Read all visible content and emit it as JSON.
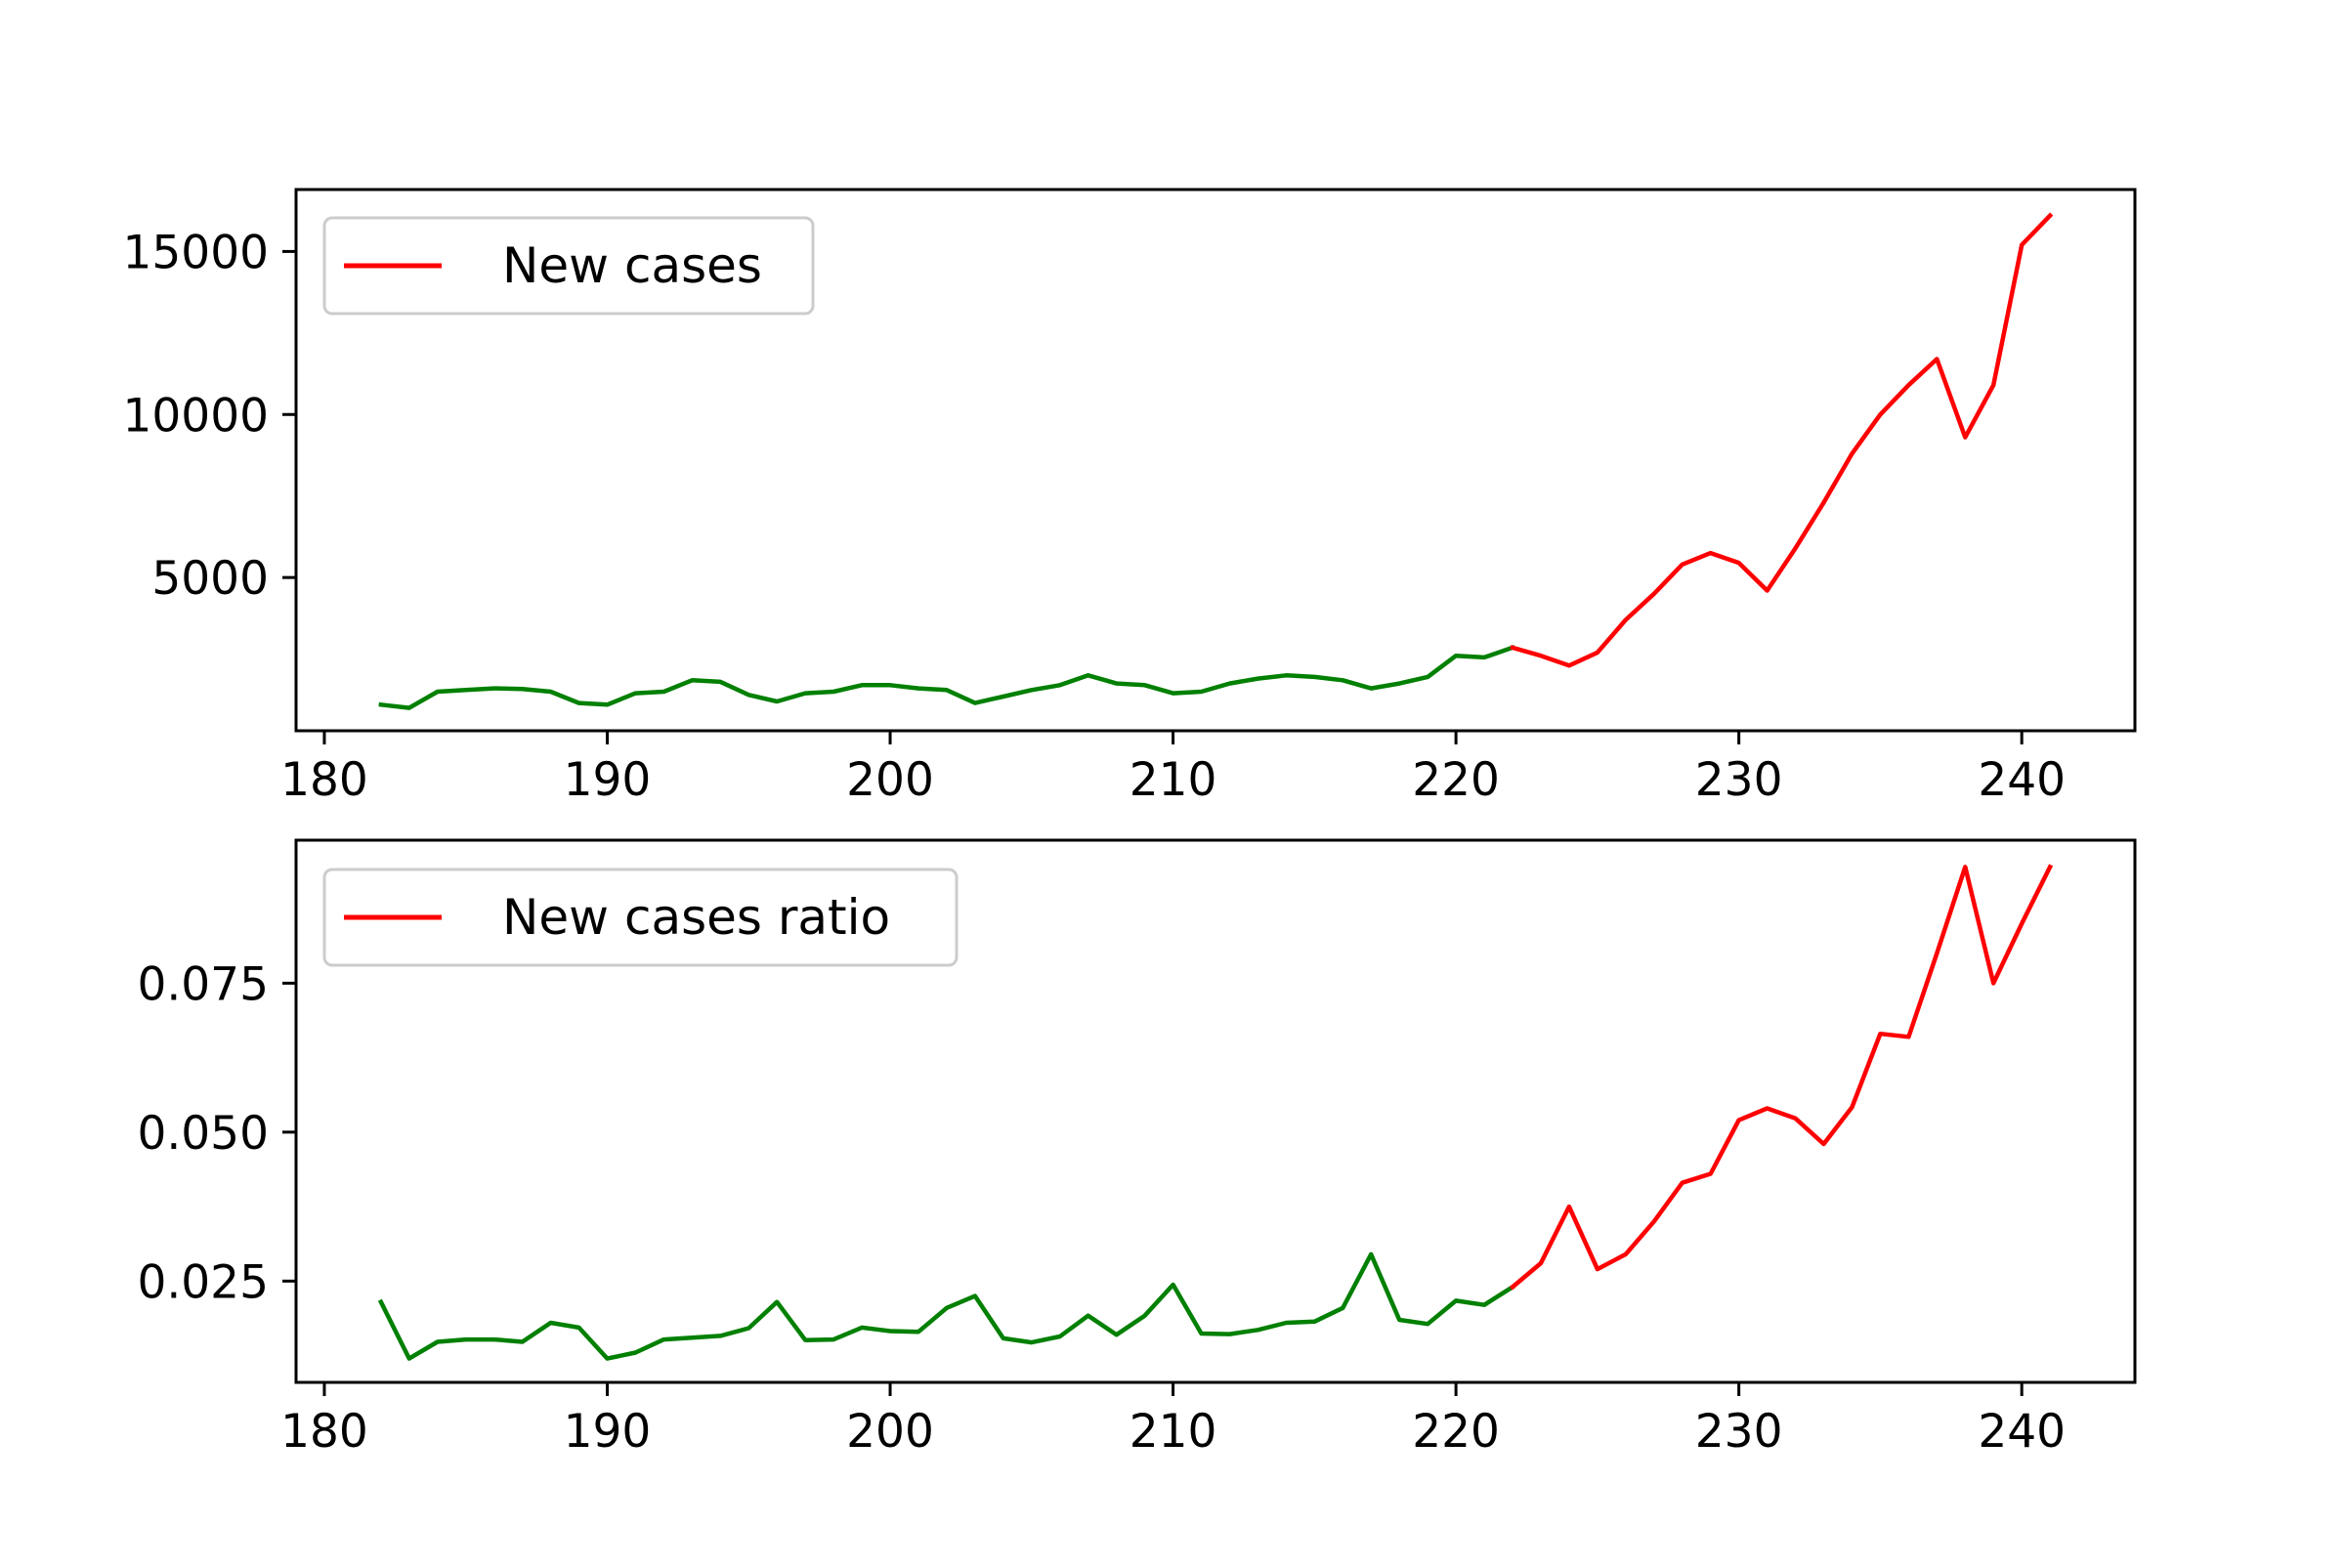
{
  "chart_data": [
    {
      "type": "line",
      "title": "",
      "xlabel": "",
      "ylabel": "",
      "xlim": [
        179,
        244
      ],
      "ylim": [
        300,
        16900
      ],
      "xticks": [
        180,
        190,
        200,
        210,
        220,
        230,
        240
      ],
      "yticks": [
        5000,
        10000,
        15000
      ],
      "xtick_labels": [
        "180",
        "190",
        "200",
        "210",
        "220",
        "230",
        "240"
      ],
      "ytick_labels": [
        "5000",
        "10000",
        "15000"
      ],
      "grid": false,
      "legend": {
        "position": "upper left",
        "entries": [
          {
            "label": "New cases",
            "color": "#ff0000"
          }
        ]
      },
      "series": [
        {
          "color": "#008000",
          "x": [
            182,
            183,
            184,
            185,
            186,
            187,
            188,
            189,
            190,
            191,
            192,
            193,
            194,
            195,
            196,
            197,
            198,
            199,
            200,
            201,
            202,
            203,
            204,
            205,
            206,
            207,
            208,
            209,
            210,
            211,
            212,
            213,
            214,
            215,
            216,
            217,
            218,
            219,
            220,
            221,
            222
          ],
          "y": [
            1100,
            1000,
            1500,
            1550,
            1600,
            1580,
            1500,
            1150,
            1100,
            1450,
            1500,
            1850,
            1800,
            1400,
            1200,
            1450,
            1500,
            1700,
            1700,
            1600,
            1550,
            1150,
            1350,
            1550,
            1700,
            2000,
            1750,
            1700,
            1450,
            1500,
            1750,
            1900,
            2000,
            1950,
            1850,
            1600,
            1750,
            1950,
            2600,
            2550,
            2850
          ]
        },
        {
          "name": "New cases",
          "color": "#ff0000",
          "x": [
            222,
            223,
            224,
            225,
            226,
            227,
            228,
            229,
            230,
            231,
            232,
            233,
            234,
            235,
            236,
            237,
            238,
            239,
            240,
            241
          ],
          "y": [
            2850,
            2600,
            2300,
            2700,
            3700,
            4500,
            5400,
            5750,
            5450,
            4600,
            5900,
            7300,
            8800,
            10000,
            10900,
            11700,
            9300,
            10900,
            15200,
            16100
          ]
        }
      ]
    },
    {
      "type": "line",
      "title": "",
      "xlabel": "",
      "ylabel": "",
      "xlim": [
        179,
        244
      ],
      "ylim": [
        0.008,
        0.099
      ],
      "xticks": [
        180,
        190,
        200,
        210,
        220,
        230,
        240
      ],
      "yticks": [
        0.025,
        0.05,
        0.075
      ],
      "xtick_labels": [
        "180",
        "190",
        "200",
        "210",
        "220",
        "230",
        "240"
      ],
      "ytick_labels": [
        "0.025",
        "0.050",
        "0.075"
      ],
      "grid": false,
      "legend": {
        "position": "upper left",
        "entries": [
          {
            "label": "New cases ratio",
            "color": "#ff0000"
          }
        ]
      },
      "series": [
        {
          "color": "#008000",
          "x": [
            182,
            183,
            184,
            185,
            186,
            187,
            188,
            189,
            190,
            191,
            192,
            193,
            194,
            195,
            196,
            197,
            198,
            199,
            200,
            201,
            202,
            203,
            204,
            205,
            206,
            207,
            208,
            209,
            210,
            211,
            212,
            213,
            214,
            215,
            216,
            217,
            218,
            219,
            220,
            221,
            222
          ],
          "y": [
            0.0215,
            0.012,
            0.0148,
            0.0152,
            0.0152,
            0.0148,
            0.018,
            0.0172,
            0.012,
            0.013,
            0.0152,
            0.0155,
            0.0158,
            0.0171,
            0.0215,
            0.0151,
            0.0152,
            0.0172,
            0.0166,
            0.0165,
            0.0205,
            0.0225,
            0.0154,
            0.0147,
            0.0157,
            0.0192,
            0.016,
            0.0192,
            0.0244,
            0.0162,
            0.0161,
            0.0168,
            0.018,
            0.0182,
            0.0205,
            0.0295,
            0.0185,
            0.0178,
            0.0217,
            0.021,
            0.024
          ]
        },
        {
          "name": "New cases ratio",
          "color": "#ff0000",
          "x": [
            222,
            223,
            224,
            225,
            226,
            227,
            228,
            229,
            230,
            231,
            232,
            233,
            234,
            235,
            236,
            237,
            238,
            239,
            240,
            241
          ],
          "y": [
            0.024,
            0.028,
            0.0375,
            0.027,
            0.0295,
            0.035,
            0.0415,
            0.043,
            0.052,
            0.054,
            0.0523,
            0.048,
            0.0542,
            0.0665,
            0.066,
            0.08,
            0.0945,
            0.075,
            0.085,
            0.0945
          ]
        }
      ]
    }
  ]
}
